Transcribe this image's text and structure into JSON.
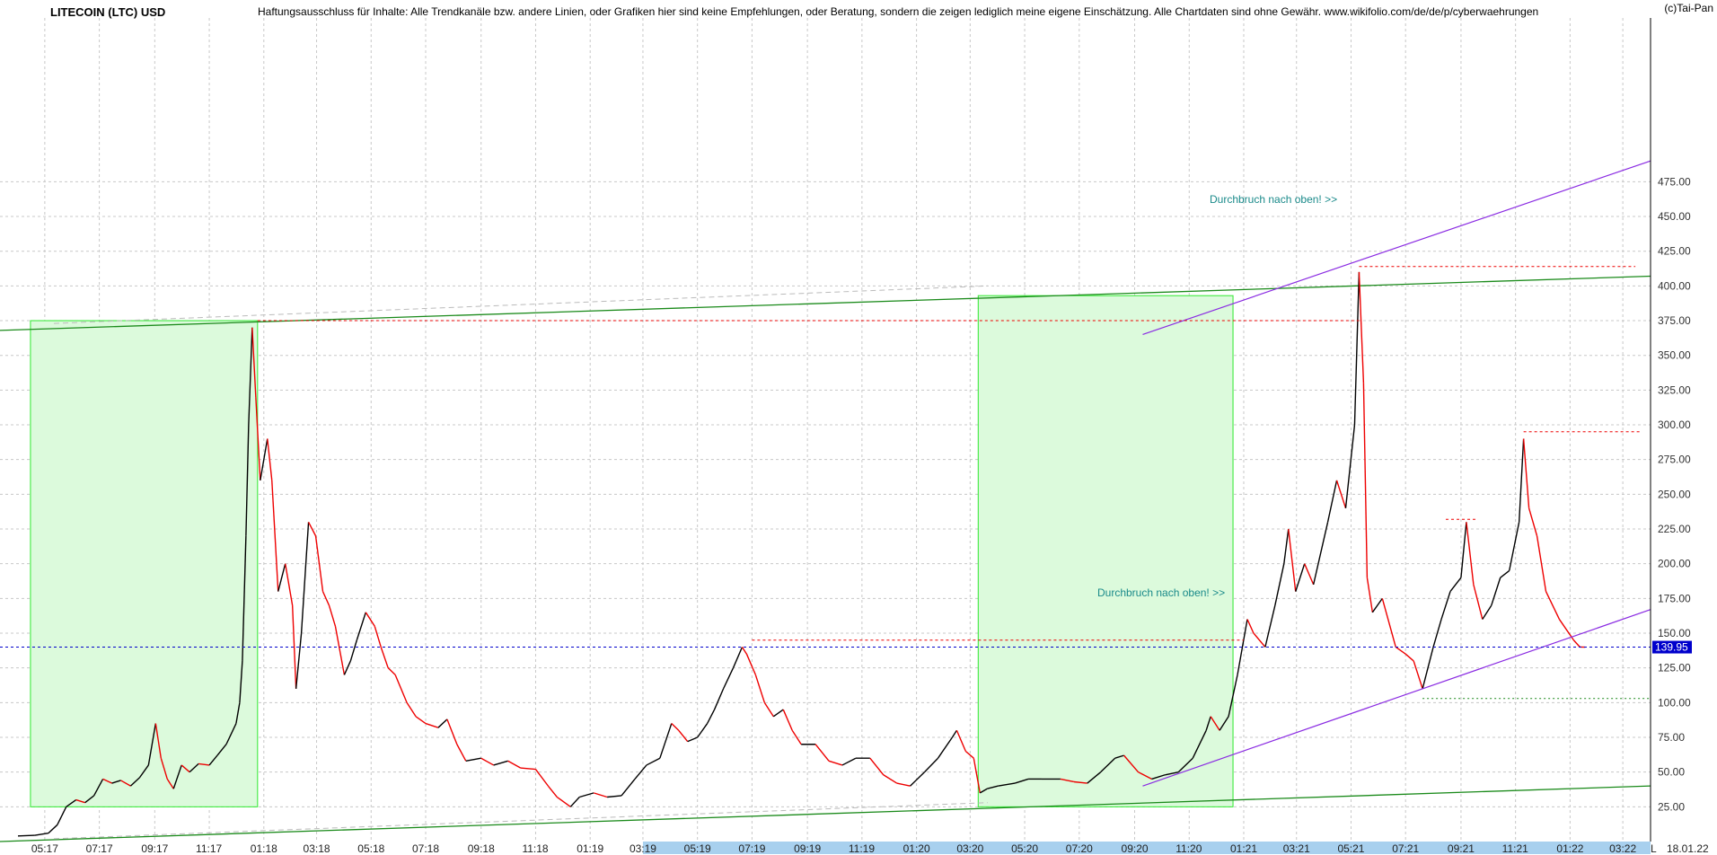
{
  "header": {
    "title": "LITECOIN (LTC) USD",
    "disclaimer": "Haftungsausschluss für Inhalte: Alle Trendkanäle bzw. andere Linien, oder Grafiken hier sind keine Empfehlungen, oder Beratung, sondern die zeigen lediglich meine eigene Einschätzung. Alle Chartdaten sind ohne Gewähr.  www.wikifolio.com/de/de/p/cyberwaehrungen",
    "copyright": "(c)Tai-Pan"
  },
  "footer": {
    "date": "18.01.22",
    "marker": "L"
  },
  "colors": {
    "up": "#000000",
    "down": "#ee0000",
    "grid": "#c8c8c8",
    "green_line": "#1a8a1a",
    "box_fill": "#dcfadc",
    "box_stroke": "#2ee82e",
    "purple": "#8a2be2",
    "blue_dotted": "#0000cc",
    "red_dotted": "#ee0000",
    "annotation": "#1a8a8a",
    "scrollbar": "#a8d0ee"
  },
  "chart_data": {
    "type": "line",
    "title": "LITECOIN (LTC) USD",
    "xlabel": "",
    "ylabel": "",
    "ylim": [
      0,
      490
    ],
    "x_range": [
      "2017-04",
      "2022-04"
    ],
    "y_ticks": [
      25,
      50,
      75,
      100,
      125,
      150,
      175,
      200,
      225,
      250,
      275,
      300,
      325,
      350,
      375,
      400,
      425,
      450,
      475
    ],
    "y_tick_labels": [
      "25.00",
      "50.00",
      "75.00",
      "100.00",
      "125.00",
      "150.00",
      "175.00",
      "200.00",
      "225.00",
      "250.00",
      "275.00",
      "300.00",
      "325.00",
      "350.00",
      "375.00",
      "400.00",
      "425.00",
      "450.00",
      "475.00"
    ],
    "x_ticks": [
      "2017-05",
      "2017-07",
      "2017-09",
      "2017-11",
      "2018-01",
      "2018-03",
      "2018-05",
      "2018-07",
      "2018-09",
      "2018-11",
      "2019-01",
      "2019-03",
      "2019-05",
      "2019-07",
      "2019-09",
      "2019-11",
      "2020-01",
      "2020-03",
      "2020-05",
      "2020-07",
      "2020-09",
      "2020-11",
      "2021-01",
      "2021-03",
      "2021-05",
      "2021-07",
      "2021-09",
      "2021-11",
      "2022-01",
      "2022-03"
    ],
    "x_tick_labels": [
      "05:17",
      "07:17",
      "09:17",
      "11:17",
      "01:18",
      "03:18",
      "05:18",
      "07:18",
      "09:18",
      "11:18",
      "01:19",
      "03:19",
      "05:19",
      "07:19",
      "09:19",
      "11:19",
      "01:20",
      "03:20",
      "05:20",
      "07:20",
      "09:20",
      "11:20",
      "01:21",
      "03:21",
      "05:21",
      "07:21",
      "09:21",
      "11:21",
      "01:22",
      "03:22"
    ],
    "grid": true,
    "current_price": 139.95,
    "current_price_label": "139.95",
    "series": [
      {
        "style": "price",
        "points": [
          [
            "2017-04-01",
            4
          ],
          [
            "2017-04-20",
            4.5
          ],
          [
            "2017-05-05",
            6
          ],
          [
            "2017-05-15",
            12
          ],
          [
            "2017-05-25",
            25
          ],
          [
            "2017-06-05",
            30
          ],
          [
            "2017-06-15",
            28
          ],
          [
            "2017-06-25",
            33
          ],
          [
            "2017-07-05",
            45
          ],
          [
            "2017-07-15",
            42
          ],
          [
            "2017-07-25",
            44
          ],
          [
            "2017-08-05",
            40
          ],
          [
            "2017-08-15",
            46
          ],
          [
            "2017-08-25",
            55
          ],
          [
            "2017-09-02",
            85
          ],
          [
            "2017-09-08",
            60
          ],
          [
            "2017-09-15",
            45
          ],
          [
            "2017-09-22",
            38
          ],
          [
            "2017-10-01",
            55
          ],
          [
            "2017-10-10",
            50
          ],
          [
            "2017-10-20",
            56
          ],
          [
            "2017-11-01",
            55
          ],
          [
            "2017-11-10",
            62
          ],
          [
            "2017-11-20",
            70
          ],
          [
            "2017-12-01",
            85
          ],
          [
            "2017-12-05",
            100
          ],
          [
            "2017-12-08",
            130
          ],
          [
            "2017-12-12",
            220
          ],
          [
            "2017-12-15],",
            300
          ],
          [
            "2017-12-19",
            370
          ],
          [
            "2017-12-23",
            320
          ],
          [
            "2017-12-28",
            260
          ],
          [
            "2018-01-05",
            290
          ],
          [
            "2018-01-10",
            260
          ],
          [
            "2018-01-17",
            180
          ],
          [
            "2018-01-25",
            200
          ],
          [
            "2018-02-02",
            170
          ],
          [
            "2018-02-06",
            110
          ],
          [
            "2018-02-12",
            150
          ],
          [
            "2018-02-20",
            230
          ],
          [
            "2018-02-28",
            220
          ],
          [
            "2018-03-08",
            180
          ],
          [
            "2018-03-15",
            170
          ],
          [
            "2018-03-22",
            155
          ],
          [
            "2018-04-01",
            120
          ],
          [
            "2018-04-08",
            130
          ],
          [
            "2018-04-15",
            145
          ],
          [
            "2018-04-25",
            165
          ],
          [
            "2018-05-05",
            155
          ],
          [
            "2018-05-12",
            140
          ],
          [
            "2018-05-20",
            125
          ],
          [
            "2018-05-28",
            120
          ],
          [
            "2018-06-10",
            100
          ],
          [
            "2018-06-20",
            90
          ],
          [
            "2018-07-01",
            85
          ],
          [
            "2018-07-15",
            82
          ],
          [
            "2018-07-25",
            88
          ],
          [
            "2018-08-05",
            70
          ],
          [
            "2018-08-15",
            58
          ],
          [
            "2018-09-01",
            60
          ],
          [
            "2018-09-15",
            55
          ],
          [
            "2018-10-01",
            58
          ],
          [
            "2018-10-15",
            53
          ],
          [
            "2018-11-01",
            52
          ],
          [
            "2018-11-15",
            40
          ],
          [
            "2018-11-25",
            32
          ],
          [
            "2018-12-10",
            25
          ],
          [
            "2018-12-20",
            32
          ],
          [
            "2019-01-05",
            35
          ],
          [
            "2019-01-20",
            32
          ],
          [
            "2019-02-05",
            33
          ],
          [
            "2019-02-20",
            45
          ],
          [
            "2019-03-05",
            55
          ],
          [
            "2019-03-20",
            60
          ],
          [
            "2019-04-02",
            85
          ],
          [
            "2019-04-10",
            80
          ],
          [
            "2019-04-20",
            72
          ],
          [
            "2019-05-01",
            75
          ],
          [
            "2019-05-12",
            85
          ],
          [
            "2019-05-20",
            95
          ],
          [
            "2019-05-30",
            110
          ],
          [
            "2019-06-10",
            125
          ],
          [
            "2019-06-20",
            140
          ],
          [
            "2019-06-25",
            135
          ],
          [
            "2019-07-05",
            120
          ],
          [
            "2019-07-15",
            100
          ],
          [
            "2019-07-25",
            90
          ],
          [
            "2019-08-05",
            95
          ],
          [
            "2019-08-15",
            80
          ],
          [
            "2019-08-25",
            70
          ],
          [
            "2019-09-10",
            70
          ],
          [
            "2019-09-25",
            58
          ],
          [
            "2019-10-10",
            55
          ],
          [
            "2019-10-25",
            60
          ],
          [
            "2019-11-10",
            60
          ],
          [
            "2019-11-25",
            48
          ],
          [
            "2019-12-10",
            42
          ],
          [
            "2019-12-25",
            40
          ],
          [
            "2020-01-10",
            50
          ],
          [
            "2020-01-25",
            60
          ],
          [
            "2020-02-10",
            75
          ],
          [
            "2020-02-15",
            80
          ],
          [
            "2020-02-25",
            65
          ],
          [
            "2020-03-05",
            60
          ],
          [
            "2020-03-12",
            35
          ],
          [
            "2020-03-20",
            38
          ],
          [
            "2020-04-01",
            40
          ],
          [
            "2020-04-20",
            42
          ],
          [
            "2020-05-05",
            45
          ],
          [
            "2020-05-20",
            45
          ],
          [
            "2020-06-10",
            45
          ],
          [
            "2020-06-25",
            43
          ],
          [
            "2020-07-10",
            42
          ],
          [
            "2020-07-25",
            50
          ],
          [
            "2020-08-10",
            60
          ],
          [
            "2020-08-20",
            62
          ],
          [
            "2020-09-05",
            50
          ],
          [
            "2020-09-20",
            45
          ],
          [
            "2020-10-05",
            48
          ],
          [
            "2020-10-20",
            50
          ],
          [
            "2020-11-05",
            60
          ],
          [
            "2020-11-20",
            80
          ],
          [
            "2020-11-25",
            90
          ],
          [
            "2020-12-05",
            80
          ],
          [
            "2020-12-15",
            90
          ],
          [
            "2020-12-25",
            120
          ],
          [
            "2021-01-05",
            160
          ],
          [
            "2021-01-12",
            150
          ],
          [
            "2021-01-25",
            140
          ],
          [
            "2021-02-05",
            170
          ],
          [
            "2021-02-15",
            200
          ],
          [
            "2021-02-20",
            225
          ],
          [
            "2021-02-28",
            180
          ],
          [
            "2021-03-10",
            200
          ],
          [
            "2021-03-20",
            185
          ],
          [
            "2021-04-05",
            230
          ],
          [
            "2021-04-15",
            260
          ],
          [
            "2021-04-25",
            240
          ],
          [
            "2021-05-05",
            300
          ],
          [
            "2021-05-10",
            410
          ],
          [
            "2021-05-15",
            330
          ],
          [
            "2021-05-19",
            190
          ],
          [
            "2021-05-25",
            165
          ],
          [
            "2021-06-05",
            175
          ],
          [
            "2021-06-20",
            140
          ],
          [
            "2021-07-01",
            135
          ],
          [
            "2021-07-10",
            130
          ],
          [
            "2021-07-20",
            110
          ],
          [
            "2021-08-01",
            140
          ],
          [
            "2021-08-10",
            160
          ],
          [
            "2021-08-20",
            180
          ],
          [
            "2021-09-01",
            190
          ],
          [
            "2021-09-07",
            230
          ],
          [
            "2021-09-15",
            185
          ],
          [
            "2021-09-25",
            160
          ],
          [
            "2021-10-05",
            170
          ],
          [
            "2021-10-15",
            190
          ],
          [
            "2021-10-25",
            195
          ],
          [
            "2021-11-05",
            230
          ],
          [
            "2021-11-10",
            290
          ],
          [
            "2021-11-16",
            240
          ],
          [
            "2021-11-25",
            220
          ],
          [
            "2021-12-05",
            180
          ],
          [
            "2021-12-20",
            160
          ],
          [
            "2022-01-05",
            145
          ],
          [
            "2022-01-12",
            140
          ],
          [
            "2022-01-18",
            139.95
          ]
        ]
      }
    ]
  },
  "annotations": {
    "breakout_1": "Durchbruch nach oben! >>",
    "breakout_2": "Durchbruch nach oben! >>"
  }
}
